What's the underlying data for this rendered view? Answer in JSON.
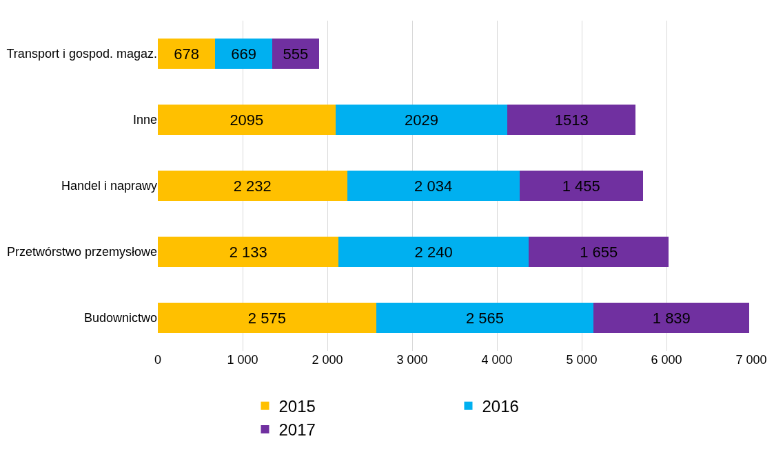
{
  "chart_data": {
    "type": "bar",
    "orientation": "horizontal",
    "stacked": true,
    "categories": [
      "Transport i gospod. magaz.",
      "Inne",
      "Handel i naprawy",
      "Przetwórstwo przemysłowe",
      "Budownictwo"
    ],
    "series": [
      {
        "name": "2015",
        "color": "#ffc000",
        "values": [
          678,
          2095,
          2232,
          2133,
          2575
        ],
        "value_labels": [
          "678",
          "2095",
          "2 232",
          "2 133",
          "2 575"
        ]
      },
      {
        "name": "2016",
        "color": "#00b0f0",
        "values": [
          669,
          2029,
          2034,
          2240,
          2565
        ],
        "value_labels": [
          "669",
          "2029",
          "2 034",
          "2 240",
          "2 565"
        ]
      },
      {
        "name": "2017",
        "color": "#7030a0",
        "values": [
          555,
          1513,
          1455,
          1655,
          1839
        ],
        "value_labels": [
          "555",
          "1513",
          "1 455",
          "1 655",
          "1 839"
        ]
      }
    ],
    "xlim": [
      0,
      7000
    ],
    "xticks": [
      0,
      {
        "value": 1000,
        "label": "1 000"
      },
      {
        "value": 2000,
        "label": "2 000"
      },
      {
        "value": 3000,
        "label": "3 000"
      },
      {
        "value": 4000,
        "label": "4 000"
      },
      {
        "value": 5000,
        "label": "5 000"
      },
      {
        "value": 6000,
        "label": "6 000"
      },
      {
        "value": 7000,
        "label": "7 000"
      }
    ],
    "grid": "x",
    "legend": "bottom"
  }
}
